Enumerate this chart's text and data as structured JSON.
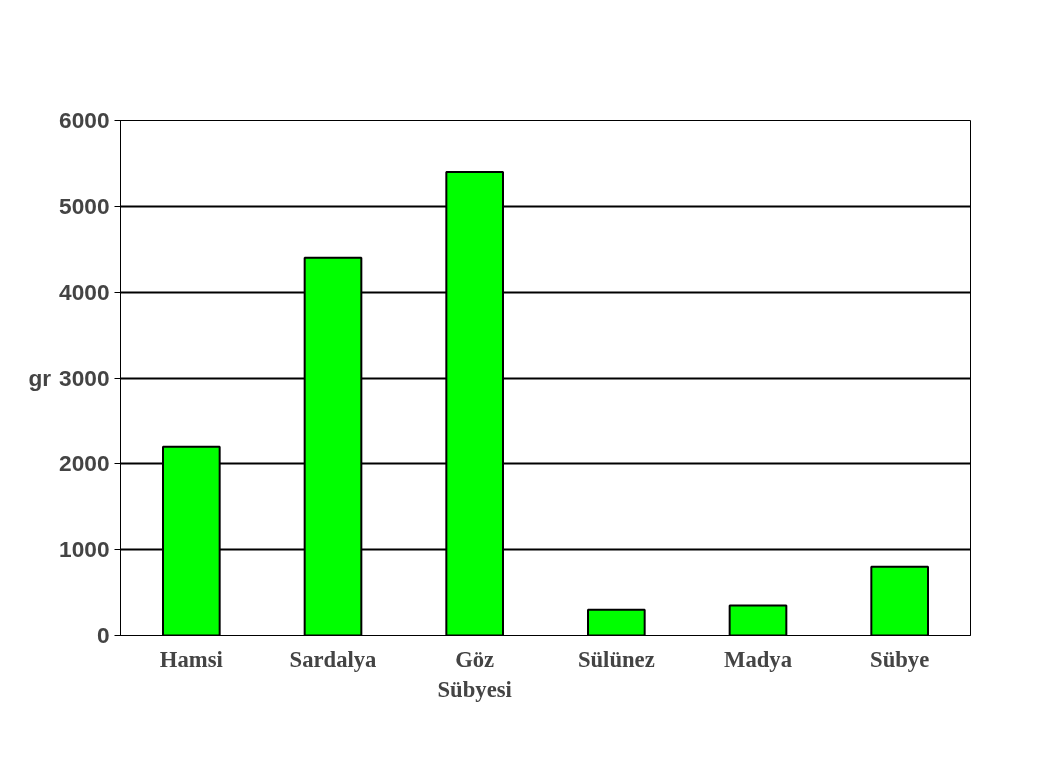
{
  "chart_data": {
    "type": "bar",
    "ylabel": "gr",
    "categories": [
      "Hamsi",
      "Sardalya",
      "Göz Sübyesi",
      "Sülünez",
      "Madya",
      "Sübye"
    ],
    "values": [
      2200,
      4400,
      5400,
      300,
      350,
      800
    ],
    "color": "#00ff00",
    "ylim": [
      0,
      6000
    ],
    "yticks": [
      0,
      1000,
      2000,
      3000,
      4000,
      5000,
      6000
    ],
    "grid": "y"
  }
}
